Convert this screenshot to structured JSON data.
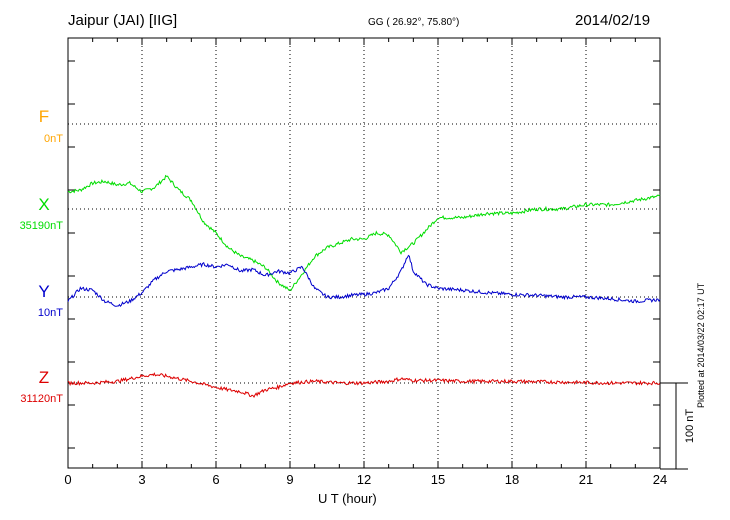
{
  "header": {
    "station": "Jaipur (JAI)  [IIG]",
    "coords": "GG ( 26.92°,  75.80°)",
    "date": "2014/02/19"
  },
  "footer": {
    "plotted": "Plotted at 2014/03/22 02:17 UT"
  },
  "colors": {
    "F": "#ffa500",
    "X": "#00dd00",
    "Y": "#0000cc",
    "Z": "#dd0000"
  },
  "chart_data": {
    "type": "line",
    "xlabel": "U T (hour)",
    "xlim": [
      0,
      24
    ],
    "xticks": [
      0,
      3,
      6,
      9,
      12,
      15,
      18,
      21,
      24
    ],
    "scale_bar": "100 nT",
    "grid": true,
    "series": [
      {
        "name": "F",
        "baseline": "0nT",
        "x": [],
        "values": []
      },
      {
        "name": "X",
        "baseline": "35190nT",
        "x": [
          0,
          0.5,
          1,
          1.5,
          2,
          2.5,
          3,
          3.5,
          4,
          4.5,
          5,
          5.5,
          6,
          6.5,
          7,
          7.5,
          8,
          8.5,
          9,
          9.5,
          10,
          10.5,
          11,
          11.5,
          12,
          12.5,
          13,
          13.5,
          14,
          14.5,
          15,
          16,
          17,
          18,
          19,
          20,
          21,
          22,
          23,
          24
        ],
        "values": [
          20,
          22,
          30,
          32,
          28,
          30,
          20,
          25,
          38,
          22,
          10,
          -15,
          -28,
          -45,
          -55,
          -60,
          -68,
          -85,
          -95,
          -75,
          -55,
          -45,
          -40,
          -35,
          -35,
          -28,
          -30,
          -50,
          -40,
          -25,
          -10,
          -10,
          -5,
          -5,
          0,
          0,
          5,
          5,
          10,
          15
        ]
      },
      {
        "name": "Y",
        "baseline": "10nT",
        "x": [
          0,
          0.5,
          1,
          1.5,
          2,
          2.5,
          3,
          3.5,
          4,
          4.5,
          5,
          5.5,
          6,
          6.5,
          7,
          7.5,
          8,
          8.5,
          9,
          9.5,
          10,
          10.5,
          11,
          11.5,
          12,
          12.5,
          13,
          13.5,
          13.8,
          14,
          14.5,
          15,
          16,
          17,
          18,
          19,
          20,
          21,
          22,
          23,
          24
        ],
        "values": [
          -5,
          10,
          8,
          -5,
          -10,
          -5,
          5,
          20,
          30,
          32,
          35,
          38,
          35,
          38,
          30,
          32,
          25,
          30,
          28,
          35,
          10,
          0,
          0,
          2,
          3,
          5,
          10,
          30,
          50,
          30,
          15,
          10,
          8,
          5,
          3,
          2,
          0,
          0,
          -2,
          -5,
          -3
        ]
      },
      {
        "name": "Z",
        "baseline": "31120nT",
        "x": [
          0,
          1,
          2,
          3,
          3.5,
          4,
          5,
          6,
          6.5,
          7,
          7.5,
          8,
          8.5,
          9,
          10,
          11,
          12,
          13,
          13.5,
          14,
          15,
          16,
          18,
          20,
          22,
          24
        ],
        "values": [
          0,
          0,
          2,
          8,
          10,
          8,
          2,
          -5,
          -8,
          -10,
          -15,
          -8,
          -5,
          0,
          2,
          0,
          0,
          2,
          5,
          3,
          3,
          2,
          2,
          1,
          0,
          0
        ]
      }
    ]
  }
}
